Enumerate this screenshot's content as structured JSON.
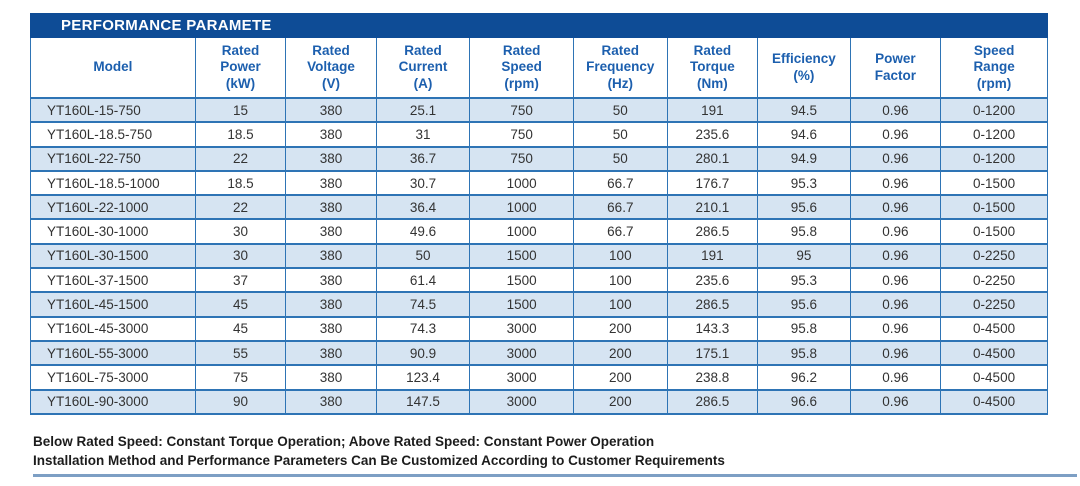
{
  "title": "PERFORMANCE PARAMETE",
  "table": {
    "columns": [
      {
        "label": "Model"
      },
      {
        "label": "Rated\nPower\n(kW)"
      },
      {
        "label": "Rated\nVoltage\n(V)"
      },
      {
        "label": "Rated\nCurrent\n(A)"
      },
      {
        "label": "Rated\nSpeed\n(rpm)"
      },
      {
        "label": "Rated\nFrequency\n(Hz)"
      },
      {
        "label": "Rated\nTorque\n(Nm)"
      },
      {
        "label": "Efficiency\n(%)"
      },
      {
        "label": "Power\nFactor"
      },
      {
        "label": "Speed\nRange\n(rpm)"
      }
    ],
    "rows": [
      [
        "YT160L-15-750",
        "15",
        "380",
        "25.1",
        "750",
        "50",
        "191",
        "94.5",
        "0.96",
        "0-1200"
      ],
      [
        "YT160L-18.5-750",
        "18.5",
        "380",
        "31",
        "750",
        "50",
        "235.6",
        "94.6",
        "0.96",
        "0-1200"
      ],
      [
        "YT160L-22-750",
        "22",
        "380",
        "36.7",
        "750",
        "50",
        "280.1",
        "94.9",
        "0.96",
        "0-1200"
      ],
      [
        "YT160L-18.5-1000",
        "18.5",
        "380",
        "30.7",
        "1000",
        "66.7",
        "176.7",
        "95.3",
        "0.96",
        "0-1500"
      ],
      [
        "YT160L-22-1000",
        "22",
        "380",
        "36.4",
        "1000",
        "66.7",
        "210.1",
        "95.6",
        "0.96",
        "0-1500"
      ],
      [
        "YT160L-30-1000",
        "30",
        "380",
        "49.6",
        "1000",
        "66.7",
        "286.5",
        "95.8",
        "0.96",
        "0-1500"
      ],
      [
        "YT160L-30-1500",
        "30",
        "380",
        "50",
        "1500",
        "100",
        "191",
        "95",
        "0.96",
        "0-2250"
      ],
      [
        "YT160L-37-1500",
        "37",
        "380",
        "61.4",
        "1500",
        "100",
        "235.6",
        "95.3",
        "0.96",
        "0-2250"
      ],
      [
        "YT160L-45-1500",
        "45",
        "380",
        "74.5",
        "1500",
        "100",
        "286.5",
        "95.6",
        "0.96",
        "0-2250"
      ],
      [
        "YT160L-45-3000",
        "45",
        "380",
        "74.3",
        "3000",
        "200",
        "143.3",
        "95.8",
        "0.96",
        "0-4500"
      ],
      [
        "YT160L-55-3000",
        "55",
        "380",
        "90.9",
        "3000",
        "200",
        "175.1",
        "95.8",
        "0.96",
        "0-4500"
      ],
      [
        "YT160L-75-3000",
        "75",
        "380",
        "123.4",
        "3000",
        "200",
        "238.8",
        "96.2",
        "0.96",
        "0-4500"
      ],
      [
        "YT160L-90-3000",
        "90",
        "380",
        "147.5",
        "3000",
        "200",
        "286.5",
        "96.6",
        "0.96",
        "0-4500"
      ]
    ]
  },
  "notes": [
    "Below Rated Speed: Constant Torque Operation; Above Rated Speed: Constant Power Operation",
    "Installation Method and Performance Parameters Can Be Customized According to Customer Requirements"
  ],
  "colors": {
    "title_bar": "#0e4c96",
    "header_text": "#1c5fae",
    "border_blue": "#2e74b5",
    "band_fill": "#d6e4f2",
    "bottom_rule": "#7d9fc4"
  }
}
